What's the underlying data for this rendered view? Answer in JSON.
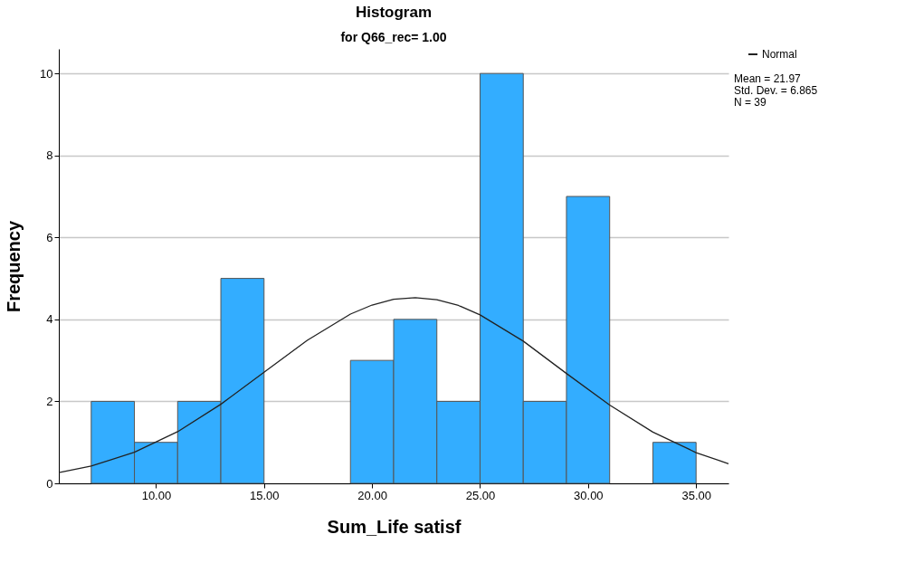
{
  "chart_data": {
    "type": "histogram",
    "title": "Histogram",
    "subtitle": "for Q66_rec= 1.00",
    "xlabel": "Sum_Life satisf",
    "ylabel": "Frequency",
    "bins": [
      7,
      9,
      11,
      13,
      15,
      17,
      19,
      21,
      23,
      25,
      27,
      29,
      31,
      33,
      35
    ],
    "values": [
      2,
      1,
      2,
      5,
      0,
      0,
      3,
      4,
      2,
      10,
      2,
      7,
      0,
      1
    ],
    "color": "#33adff",
    "series": [
      {
        "name": "Normal",
        "type": "line",
        "color": "#222222",
        "x": [
          5.5,
          7,
          9,
          11,
          13,
          15,
          17,
          19,
          20,
          21,
          22,
          23,
          24,
          25,
          27,
          29,
          31,
          33,
          35,
          36.5
        ],
        "values": [
          0.26,
          0.42,
          0.76,
          1.26,
          1.93,
          2.71,
          3.49,
          4.13,
          4.35,
          4.49,
          4.53,
          4.48,
          4.34,
          4.11,
          3.47,
          2.68,
          1.91,
          1.25,
          0.75,
          0.48
        ]
      }
    ],
    "xlim": [
      5.5,
      36.5
    ],
    "xticks": [
      {
        "value": 10,
        "label": "10.00"
      },
      {
        "value": 15,
        "label": "15.00"
      },
      {
        "value": 20,
        "label": "20.00"
      },
      {
        "value": 25,
        "label": "25.00"
      },
      {
        "value": 30,
        "label": "30.00"
      },
      {
        "value": 35,
        "label": "35.00"
      }
    ],
    "ylim": [
      0,
      10.6
    ],
    "yticks": [
      0,
      2,
      4,
      6,
      8,
      10
    ],
    "grid": "y",
    "legend": "top right",
    "marker": "none",
    "line_style": "solid",
    "annotations": [
      "Mean = 21.97",
      "Std. Dev. = 6.865",
      "N = 39"
    ]
  }
}
